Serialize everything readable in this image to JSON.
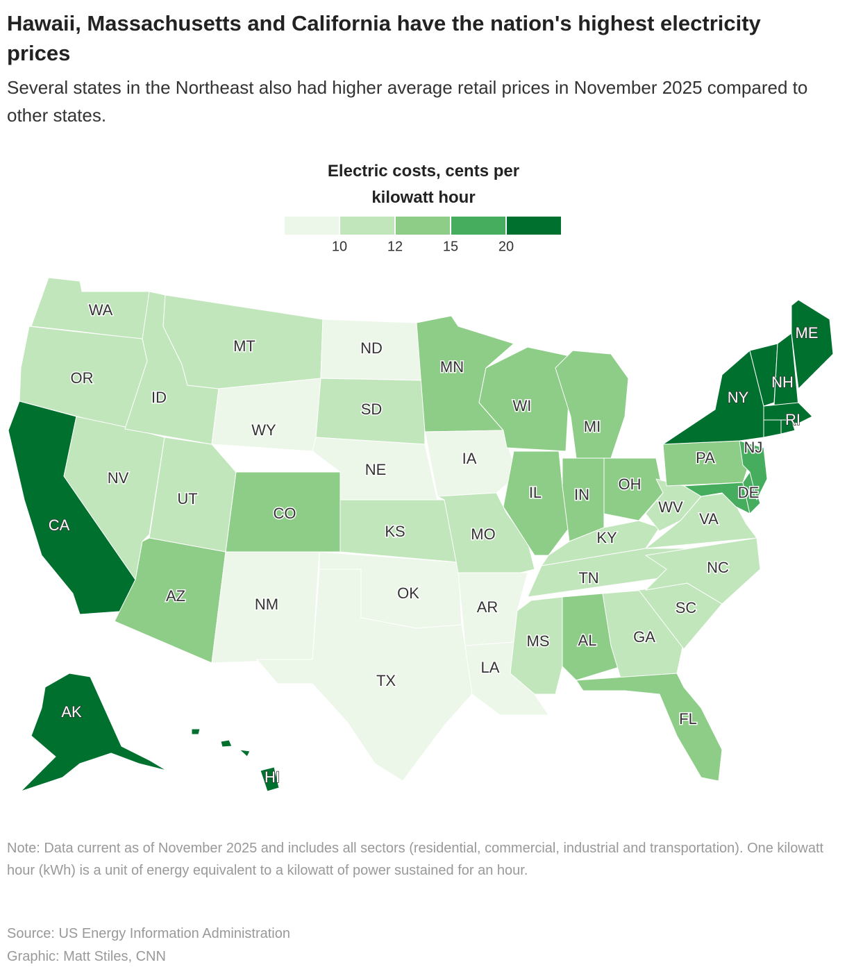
{
  "header": {
    "title": "Hawaii, Massachusetts and California have the nation's highest electricity prices",
    "subtitle": "Several states in the Northeast also had higher average retail prices in November 2025 compared to other states."
  },
  "legend": {
    "title": "Electric costs, cents per kilowatt hour",
    "colors": [
      "#edf7e9",
      "#c2e6bc",
      "#8dcd87",
      "#45ad5d",
      "#00702f"
    ],
    "ticks": [
      10,
      12,
      15,
      20
    ]
  },
  "states": [
    {
      "label": "WA",
      "color": "#c2e6bc"
    },
    {
      "label": "OR",
      "color": "#c2e6bc"
    },
    {
      "label": "CA",
      "color": "#00702f"
    },
    {
      "label": "NV",
      "color": "#c2e6bc"
    },
    {
      "label": "ID",
      "color": "#c2e6bc"
    },
    {
      "label": "MT",
      "color": "#c2e6bc"
    },
    {
      "label": "WY",
      "color": "#edf7e9"
    },
    {
      "label": "UT",
      "color": "#c2e6bc"
    },
    {
      "label": "AZ",
      "color": "#8dcd87"
    },
    {
      "label": "CO",
      "color": "#8dcd87"
    },
    {
      "label": "NM",
      "color": "#edf7e9"
    },
    {
      "label": "ND",
      "color": "#edf7e9"
    },
    {
      "label": "SD",
      "color": "#c2e6bc"
    },
    {
      "label": "NE",
      "color": "#edf7e9"
    },
    {
      "label": "KS",
      "color": "#c2e6bc"
    },
    {
      "label": "OK",
      "color": "#edf7e9"
    },
    {
      "label": "TX",
      "color": "#edf7e9"
    },
    {
      "label": "MN",
      "color": "#8dcd87"
    },
    {
      "label": "IA",
      "color": "#edf7e9"
    },
    {
      "label": "MO",
      "color": "#c2e6bc"
    },
    {
      "label": "AR",
      "color": "#edf7e9"
    },
    {
      "label": "LA",
      "color": "#edf7e9"
    },
    {
      "label": "WI",
      "color": "#8dcd87"
    },
    {
      "label": "IL",
      "color": "#8dcd87"
    },
    {
      "label": "MI",
      "color": "#8dcd87"
    },
    {
      "label": "IN",
      "color": "#8dcd87"
    },
    {
      "label": "OH",
      "color": "#8dcd87"
    },
    {
      "label": "KY",
      "color": "#c2e6bc"
    },
    {
      "label": "TN",
      "color": "#c2e6bc"
    },
    {
      "label": "MS",
      "color": "#c2e6bc"
    },
    {
      "label": "AL",
      "color": "#8dcd87"
    },
    {
      "label": "GA",
      "color": "#c2e6bc"
    },
    {
      "label": "FL",
      "color": "#8dcd87"
    },
    {
      "label": "SC",
      "color": "#c2e6bc"
    },
    {
      "label": "NC",
      "color": "#c2e6bc"
    },
    {
      "label": "VA",
      "color": "#c2e6bc"
    },
    {
      "label": "WV",
      "color": "#c2e6bc"
    },
    {
      "label": "PA",
      "color": "#8dcd87"
    },
    {
      "label": null,
      "color": "#45ad5d"
    },
    {
      "label": "DE",
      "color": "#45ad5d"
    },
    {
      "label": "NJ",
      "color": "#45ad5d"
    },
    {
      "label": "NY",
      "color": "#00702f"
    },
    {
      "label": null,
      "color": "#00702f"
    },
    {
      "label": "NH",
      "color": "#00702f"
    },
    {
      "label": "ME",
      "color": "#00702f"
    },
    {
      "label": null,
      "color": "#00702f"
    },
    {
      "label": null,
      "color": "#00702f"
    },
    {
      "label": "RI",
      "color": "#00702f"
    },
    {
      "label": "AK",
      "color": "#00702f"
    },
    {
      "label": "HI",
      "color": "#00702f"
    }
  ],
  "footer": {
    "note": "Note: Data current as of November 2025 and includes all sectors (residential, commercial, industrial and transportation). One kilowatt hour (kWh) is a unit of energy equivalent to a kilowatt of power sustained for an hour.",
    "source": "Source: US Energy Information Administration",
    "graphic": "Graphic: Matt Stiles, CNN"
  }
}
